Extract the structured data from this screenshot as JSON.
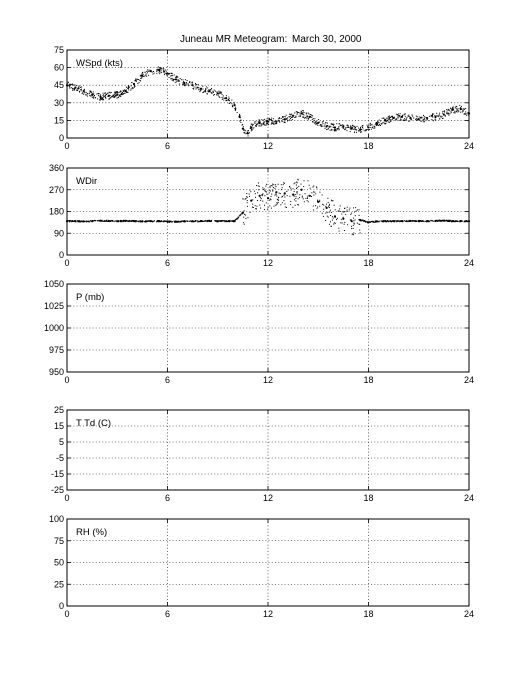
{
  "figure": {
    "title": "Juneau MR Meteogram:",
    "date": "March 30, 2000"
  },
  "chart_data": [
    {
      "type": "scatter",
      "label": "WSpd (kts)",
      "xlim": [
        0,
        24
      ],
      "ylim": [
        0,
        75
      ],
      "xticks": [
        0,
        6,
        12,
        18,
        24
      ],
      "yticks": [
        0,
        15,
        30,
        45,
        60,
        75
      ],
      "grid": true,
      "x": [
        0,
        0.5,
        1,
        1.5,
        2,
        2.5,
        3,
        3.5,
        4,
        4.5,
        5,
        5.5,
        6,
        6.5,
        7,
        7.5,
        8,
        8.5,
        9,
        9.5,
        10,
        10.3,
        10.5,
        10.8,
        11,
        11.5,
        12,
        12.5,
        13,
        13.5,
        14,
        14.5,
        15,
        15.5,
        16,
        16.5,
        17,
        17.5,
        18,
        18.5,
        19,
        19.5,
        20,
        20.5,
        21,
        21.5,
        22,
        22.5,
        23,
        23.5,
        24
      ],
      "y": [
        45,
        43,
        40,
        37,
        35,
        36,
        37,
        40,
        46,
        53,
        57,
        58,
        55,
        50,
        47,
        45,
        42,
        40,
        38,
        34,
        28,
        18,
        8,
        4,
        9,
        13,
        14,
        14,
        16,
        19,
        21,
        18,
        13,
        10,
        9,
        10,
        8,
        7,
        9,
        12,
        15,
        17,
        18,
        17,
        16,
        17,
        18,
        20,
        24,
        25,
        21
      ]
    },
    {
      "type": "scatter",
      "label": "WDir",
      "xlim": [
        0,
        24
      ],
      "ylim": [
        0,
        360
      ],
      "xticks": [
        0,
        6,
        12,
        18,
        24
      ],
      "yticks": [
        0,
        90,
        180,
        270,
        360
      ],
      "grid": true,
      "x": [
        0,
        0.5,
        1,
        1.5,
        2,
        2.5,
        3,
        3.5,
        4,
        4.5,
        5,
        5.5,
        6,
        6.5,
        7,
        7.5,
        8,
        8.5,
        9,
        9.5,
        10,
        10.5,
        11,
        11.5,
        12,
        12.5,
        13,
        13.5,
        14,
        14.5,
        15,
        15.5,
        16,
        16.5,
        17,
        17.5,
        18,
        18.5,
        19,
        19.5,
        20,
        20.5,
        21,
        21.5,
        22,
        22.5,
        23,
        23.5,
        24
      ],
      "y": [
        140,
        140,
        139,
        140,
        142,
        141,
        140,
        141,
        140,
        139,
        140,
        140,
        138,
        138,
        139,
        140,
        140,
        141,
        140,
        140,
        140,
        175,
        225,
        245,
        235,
        260,
        255,
        250,
        270,
        245,
        220,
        195,
        160,
        150,
        140,
        145,
        135,
        139,
        140,
        140,
        140,
        141,
        140,
        140,
        141,
        142,
        140,
        140,
        140
      ]
    },
    {
      "type": "scatter",
      "label": "P (mb)",
      "xlim": [
        0,
        24
      ],
      "ylim": [
        950,
        1050
      ],
      "xticks": [
        0,
        6,
        12,
        18,
        24
      ],
      "yticks": [
        950,
        975,
        1000,
        1025,
        1050
      ],
      "grid": true,
      "x": [],
      "y": []
    },
    {
      "type": "scatter",
      "label": "T Td (C)",
      "xlim": [
        0,
        24
      ],
      "ylim": [
        -25,
        25
      ],
      "xticks": [
        0,
        6,
        12,
        18,
        24
      ],
      "yticks": [
        -25,
        -15,
        -5,
        5,
        15,
        25
      ],
      "grid": true,
      "x": [],
      "y": []
    },
    {
      "type": "scatter",
      "label": "RH (%)",
      "xlim": [
        0,
        24
      ],
      "ylim": [
        0,
        100
      ],
      "xticks": [
        0,
        6,
        12,
        18,
        24
      ],
      "yticks": [
        0,
        25,
        50,
        75,
        100
      ],
      "grid": true,
      "x": [],
      "y": []
    }
  ]
}
